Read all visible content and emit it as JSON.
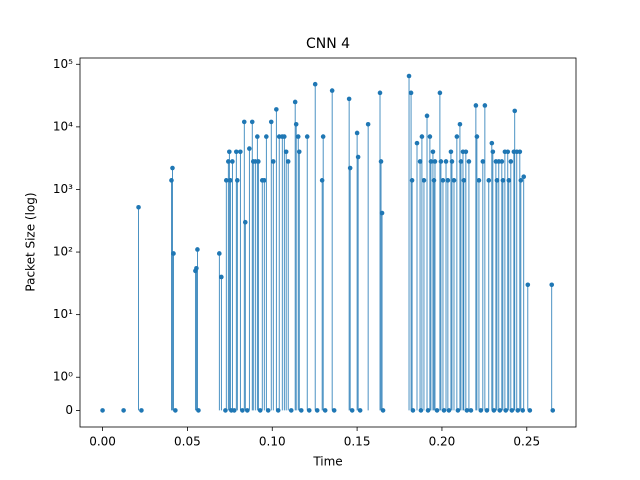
{
  "chart_data": {
    "type": "stem",
    "title": "CNN 4",
    "x_label": "Time",
    "y_label": "Packet Size (log)",
    "color": "#1f77b4",
    "yscale": "symlog",
    "xlim": [
      -0.0133,
      0.279
    ],
    "ylim": [
      -0.5,
      126000
    ],
    "xticks": [
      {
        "value": 0,
        "label": "0.00"
      },
      {
        "value": 0.05,
        "label": "0.05"
      },
      {
        "value": 0.1,
        "label": "0.10"
      },
      {
        "value": 0.15,
        "label": "0.15"
      },
      {
        "value": 0.2,
        "label": "0.20"
      },
      {
        "value": 0.25,
        "label": "0.25"
      }
    ],
    "yticks": [
      0,
      {
        "value": 1,
        "label": "10⁰"
      },
      {
        "value": 10,
        "label": "10¹"
      },
      {
        "value": 100,
        "label": "10²"
      },
      {
        "value": 1000,
        "label": "10³"
      },
      {
        "value": 10000,
        "label": "10⁴"
      },
      {
        "value": 100000,
        "label": "10⁵"
      }
    ],
    "x": [
      0.0,
      0.0124,
      0.0212,
      0.0229,
      0.0406,
      0.0412,
      0.0418,
      0.0429,
      0.0547,
      0.0553,
      0.0559,
      0.0565,
      0.0688,
      0.07,
      0.0724,
      0.0729,
      0.0741,
      0.0747,
      0.0753,
      0.0759,
      0.0765,
      0.0776,
      0.0788,
      0.0794,
      0.0812,
      0.0824,
      0.0835,
      0.0841,
      0.0853,
      0.0865,
      0.0882,
      0.0888,
      0.09,
      0.0912,
      0.0918,
      0.0929,
      0.0941,
      0.0953,
      0.0965,
      0.0976,
      0.0994,
      0.1006,
      0.1024,
      0.1035,
      0.1041,
      0.1059,
      0.1071,
      0.1082,
      0.1094,
      0.1112,
      0.1135,
      0.1141,
      0.1153,
      0.1159,
      0.1171,
      0.1206,
      0.1218,
      0.1253,
      0.1265,
      0.1294,
      0.13,
      0.1312,
      0.1353,
      0.1365,
      0.1453,
      0.1459,
      0.1471,
      0.15,
      0.1506,
      0.1518,
      0.1565,
      0.1635,
      0.1641,
      0.1647,
      0.1653,
      0.1806,
      0.1818,
      0.1824,
      0.1829,
      0.1853,
      0.1871,
      0.1876,
      0.1882,
      0.1894,
      0.1912,
      0.1918,
      0.1929,
      0.1935,
      0.1947,
      0.1953,
      0.1959,
      0.1971,
      0.1988,
      0.1994,
      0.2006,
      0.2012,
      0.2024,
      0.2035,
      0.2041,
      0.2053,
      0.2059,
      0.2071,
      0.2088,
      0.2094,
      0.2106,
      0.2112,
      0.2124,
      0.2129,
      0.2141,
      0.2147,
      0.2159,
      0.2171,
      0.22,
      0.2206,
      0.2218,
      0.2229,
      0.2241,
      0.2253,
      0.2265,
      0.2276,
      0.2294,
      0.23,
      0.2306,
      0.2318,
      0.2324,
      0.2335,
      0.2341,
      0.2353,
      0.2359,
      0.2371,
      0.2376,
      0.2388,
      0.2394,
      0.2406,
      0.2412,
      0.2424,
      0.2429,
      0.2441,
      0.2447,
      0.2459,
      0.2465,
      0.2476,
      0.2482,
      0.2506,
      0.2518,
      0.2647,
      0.2653
    ],
    "values": [
      0,
      0,
      520,
      0,
      1400,
      2200,
      95,
      0,
      50,
      55,
      110,
      0,
      95,
      40,
      0,
      1400,
      2800,
      4000,
      1400,
      0,
      2800,
      0,
      4000,
      1400,
      4000,
      0,
      12000,
      300,
      0,
      4500,
      12000,
      2800,
      2800,
      7000,
      2800,
      0,
      1400,
      1400,
      7000,
      0,
      12000,
      2800,
      19000,
      0,
      7000,
      7000,
      7000,
      4000,
      2800,
      0,
      25000,
      11000,
      7000,
      4000,
      0,
      7000,
      0,
      48000,
      0,
      1400,
      7000,
      0,
      38000,
      0,
      28000,
      2200,
      0,
      8000,
      3300,
      0,
      11000,
      35000,
      2800,
      420,
      0,
      65000,
      35000,
      1400,
      0,
      5500,
      2800,
      0,
      7000,
      1400,
      15000,
      0,
      7000,
      2800,
      4000,
      1400,
      2800,
      0,
      35000,
      2800,
      1400,
      0,
      2800,
      1400,
      0,
      4000,
      2800,
      1400,
      7000,
      0,
      11000,
      2800,
      4000,
      1400,
      4000,
      0,
      2800,
      0,
      22000,
      7000,
      1400,
      0,
      2800,
      22000,
      0,
      1400,
      5500,
      4000,
      0,
      2800,
      1400,
      2800,
      0,
      2800,
      1400,
      4000,
      0,
      4000,
      1400,
      2800,
      0,
      4000,
      18000,
      4000,
      0,
      4000,
      1400,
      0,
      1600,
      30,
      0,
      30,
      0
    ]
  }
}
